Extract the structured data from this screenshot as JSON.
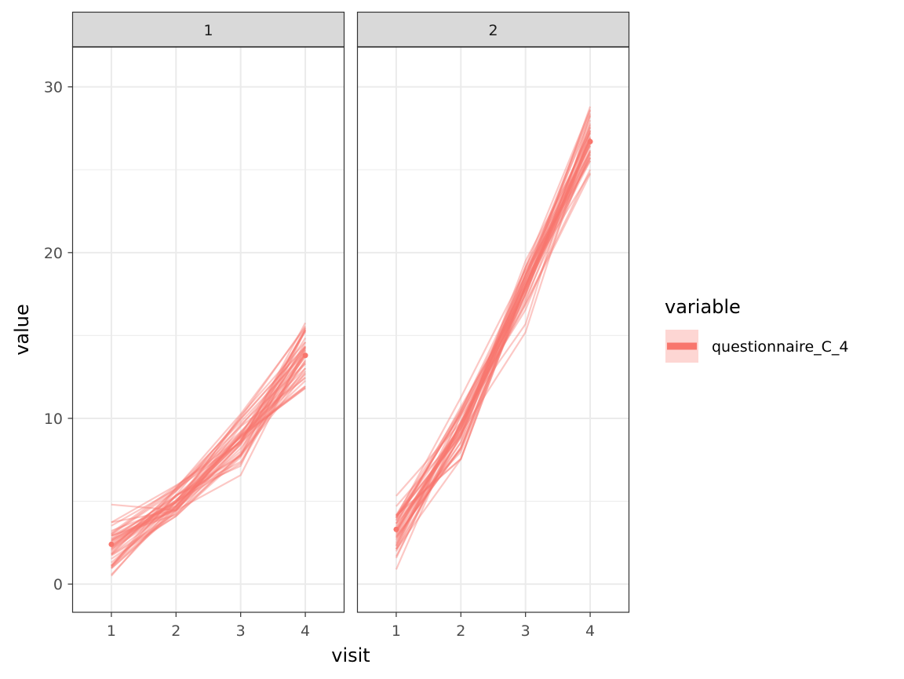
{
  "chart_data": {
    "type": "line",
    "facet_variable_levels": [
      "1",
      "2"
    ],
    "xlabel": "visit",
    "ylabel": "value",
    "x_ticks": [
      1,
      2,
      3,
      4
    ],
    "y_ticks": [
      0,
      10,
      20,
      30
    ],
    "xlim": [
      0.4,
      4.6
    ],
    "ylim": [
      -1.7,
      32.4
    ],
    "grid": true,
    "legend": {
      "title": "variable",
      "position": "right",
      "entries": [
        "questionnaire_C_4"
      ]
    },
    "series_color": "#F8766D",
    "panels": [
      {
        "facet": "1",
        "x": [
          1,
          2,
          3,
          4
        ],
        "mean": [
          2.4,
          5.0,
          8.6,
          13.8
        ],
        "individual_min": [
          -0.2,
          3.1,
          6.2,
          10.8
        ],
        "individual_max": [
          4.8,
          6.8,
          11.7,
          16.6
        ]
      },
      {
        "facet": "2",
        "x": [
          1,
          2,
          3,
          4
        ],
        "mean": [
          3.3,
          9.5,
          17.9,
          26.7
        ],
        "individual_min": [
          0.4,
          7.0,
          15.2,
          23.8
        ],
        "individual_max": [
          6.0,
          12.6,
          19.5,
          30.9
        ]
      }
    ],
    "n_subjects_per_panel_approx": 40
  }
}
